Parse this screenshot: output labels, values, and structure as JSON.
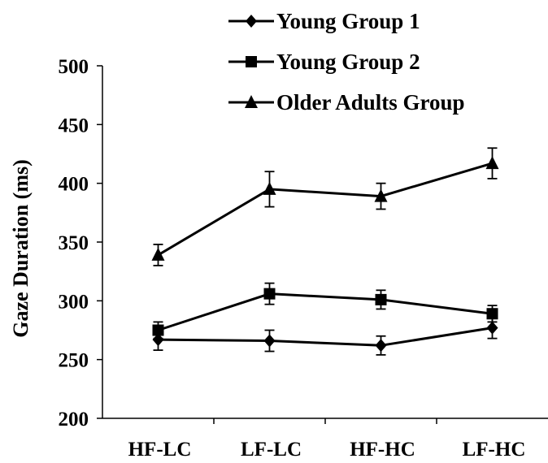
{
  "chart_data": {
    "type": "line",
    "categories": [
      "HF-LC",
      "LF-LC",
      "HF-HC",
      "LF-HC"
    ],
    "ylabel": "Gaze Duration (ms)",
    "xlabel": "",
    "ylim": [
      200,
      500
    ],
    "yticks": [
      200,
      250,
      300,
      350,
      400,
      450,
      500
    ],
    "grid": false,
    "legend_position": "top",
    "series": [
      {
        "name": "Young Group 1",
        "marker": "diamond",
        "values": [
          267,
          266,
          262,
          277
        ],
        "errors": [
          9,
          9,
          8,
          9
        ]
      },
      {
        "name": "Young Group 2",
        "marker": "square",
        "values": [
          275,
          306,
          301,
          289
        ],
        "errors": [
          7,
          9,
          8,
          7
        ]
      },
      {
        "name": "Older Adults Group",
        "marker": "triangle",
        "values": [
          339,
          395,
          389,
          417
        ],
        "errors": [
          9,
          15,
          11,
          13
        ]
      }
    ],
    "colors": {
      "line": "#000000"
    }
  }
}
